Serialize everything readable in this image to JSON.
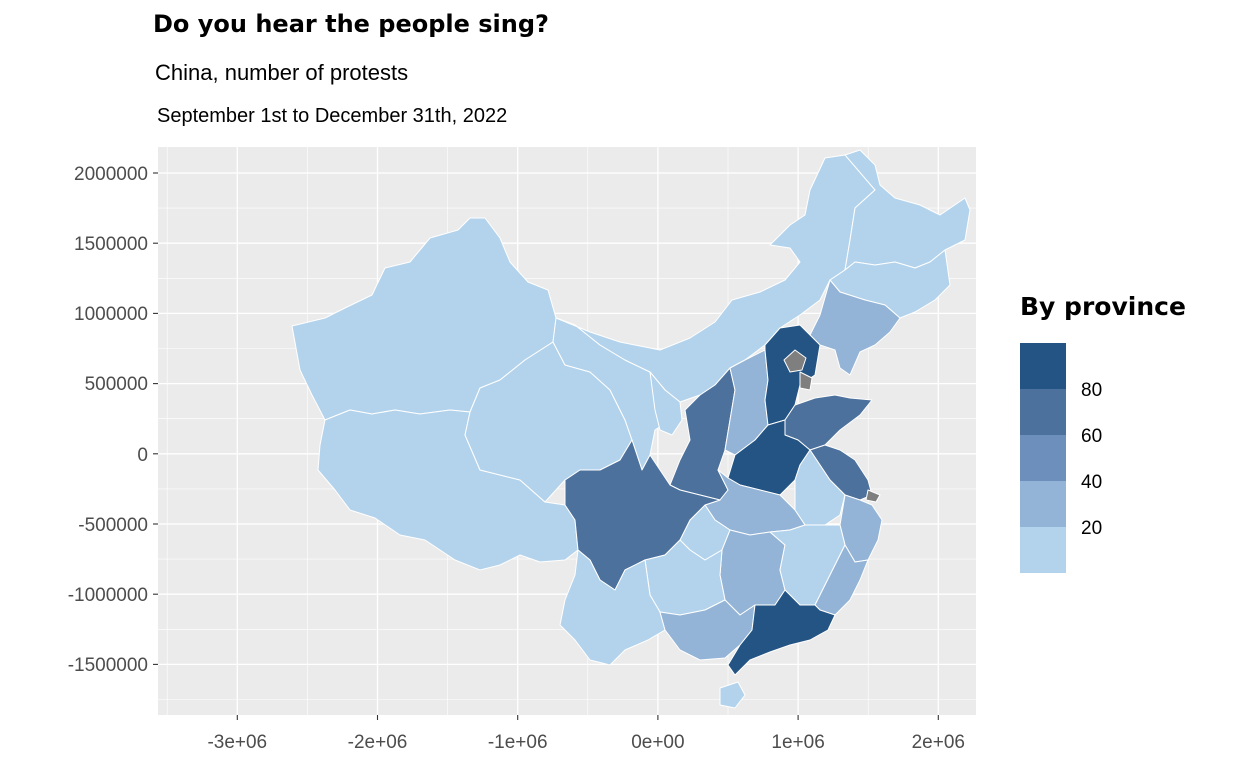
{
  "title": "Do you hear the people sing?",
  "subtitle": "China, number of protests",
  "caption": "September 1st to December 31th, 2022",
  "colors": {
    "panel": "#ebebeb",
    "grid": "#ffffff",
    "na": "#7f7f7f",
    "tick": "#4d4d4d",
    "scale": [
      "#b3d3ec",
      "#93b4d6",
      "#6c8fbb",
      "#4d719d",
      "#245484"
    ]
  },
  "chart_data": {
    "type": "choropleth",
    "x_ticks": [
      "-3e+06",
      "-2e+06",
      "-1e+06",
      "0e+00",
      "1e+06",
      "2e+06"
    ],
    "y_ticks": [
      "2000000",
      "1500000",
      "1000000",
      "500000",
      "0",
      "-500000",
      "-1000000",
      "-1500000"
    ],
    "grid": true,
    "legend": {
      "title": "By province",
      "placement": "right",
      "breaks": [
        "80",
        "60",
        "40",
        "20"
      ]
    }
  }
}
